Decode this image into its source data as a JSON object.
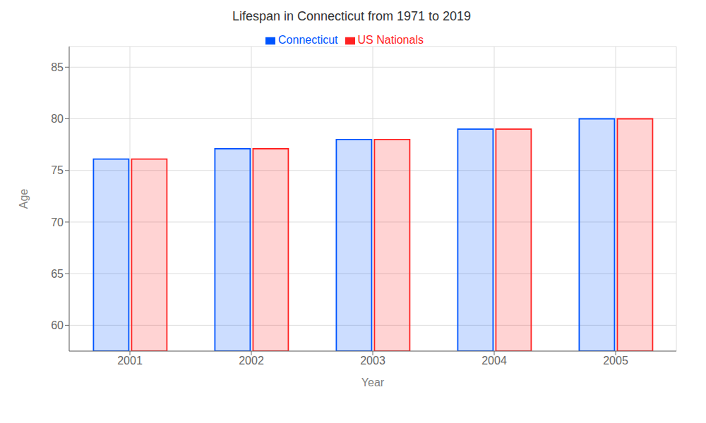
{
  "chart_data": {
    "type": "bar",
    "title": "Lifespan in Connecticut from 1971 to 2019",
    "xlabel": "Year",
    "ylabel": "Age",
    "categories": [
      "2001",
      "2002",
      "2003",
      "2004",
      "2005"
    ],
    "series": [
      {
        "name": "Connecticut",
        "color": "#0055ff",
        "values": [
          76.1,
          77.1,
          78.0,
          79.0,
          80.0
        ]
      },
      {
        "name": "US Nationals",
        "color": "#ff2222",
        "values": [
          76.1,
          77.1,
          78.0,
          79.0,
          80.0
        ]
      }
    ],
    "ylim": [
      57.5,
      87
    ],
    "yticks": [
      60,
      65,
      70,
      75,
      80,
      85
    ],
    "grid": true,
    "legend": "top"
  }
}
